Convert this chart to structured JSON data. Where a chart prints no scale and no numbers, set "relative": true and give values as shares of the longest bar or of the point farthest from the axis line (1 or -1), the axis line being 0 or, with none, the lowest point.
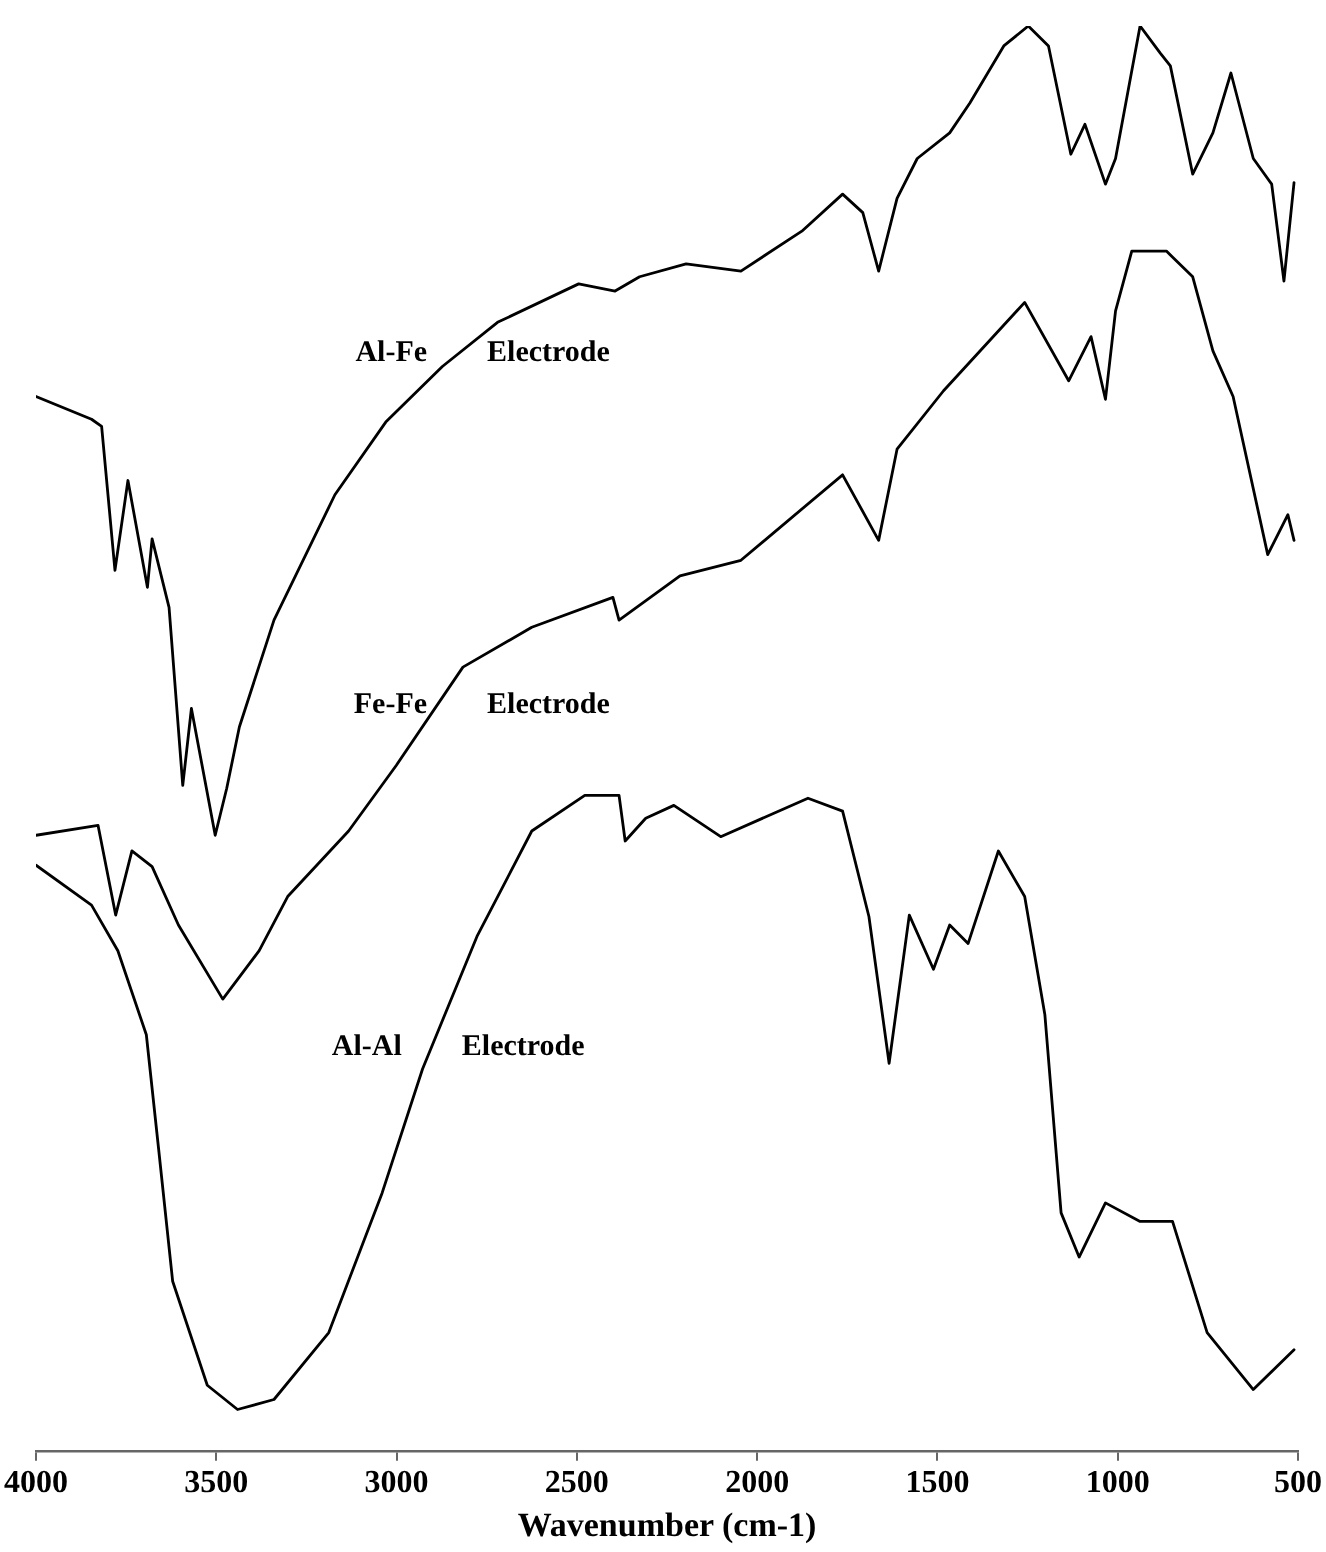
{
  "chart_data": {
    "type": "line",
    "xlabel": "Wavenumber (cm-1)",
    "xlim": [
      4000,
      500
    ],
    "xticks": [
      4000,
      3500,
      3000,
      2500,
      2000,
      1500,
      1000,
      500
    ],
    "relative": true,
    "grid": false,
    "legend": false,
    "marker": "none",
    "line_style": "solid",
    "series": [
      {
        "name": "Al-Fe Electrode",
        "color": "#000000",
        "x": [
          4000,
          3846,
          3818,
          3781,
          3745,
          3691,
          3678,
          3631,
          3593,
          3569,
          3503,
          3471,
          3436,
          3340,
          3171,
          3030,
          2873,
          2720,
          2495,
          2394,
          2326,
          2197,
          2045,
          1876,
          1763,
          1707,
          1663,
          1612,
          1556,
          1466,
          1410,
          1316,
          1248,
          1192,
          1130,
          1091,
          1034,
          1006,
          938,
          882,
          854,
          792,
          736,
          686,
          624,
          573,
          539,
          511
        ],
        "values": [
          0.74,
          0.724,
          0.719,
          0.618,
          0.681,
          0.606,
          0.64,
          0.592,
          0.467,
          0.521,
          0.432,
          0.465,
          0.508,
          0.583,
          0.671,
          0.722,
          0.761,
          0.792,
          0.819,
          0.814,
          0.824,
          0.833,
          0.828,
          0.856,
          0.882,
          0.869,
          0.828,
          0.879,
          0.907,
          0.925,
          0.946,
          0.986,
          1.0,
          0.986,
          0.91,
          0.931,
          0.889,
          0.907,
          1.0,
          0.981,
          0.972,
          0.896,
          0.925,
          0.967,
          0.907,
          0.889,
          0.821,
          0.89
        ]
      },
      {
        "name": "Fe-Fe Electrode",
        "color": "#000000",
        "x": [
          4000,
          3828,
          3779,
          3734,
          3678,
          3605,
          3482,
          3381,
          3302,
          3133,
          3001,
          2816,
          2625,
          2400,
          2383,
          2214,
          2045,
          1763,
          1663,
          1612,
          1483,
          1258,
          1136,
          1074,
          1034,
          1006,
          961,
          865,
          792,
          736,
          680,
          584,
          528,
          511
        ],
        "values": [
          0.432,
          0.439,
          0.376,
          0.421,
          0.41,
          0.369,
          0.317,
          0.351,
          0.389,
          0.435,
          0.481,
          0.55,
          0.578,
          0.599,
          0.583,
          0.614,
          0.625,
          0.685,
          0.639,
          0.703,
          0.744,
          0.806,
          0.751,
          0.782,
          0.738,
          0.8,
          0.842,
          0.842,
          0.824,
          0.772,
          0.74,
          0.629,
          0.657,
          0.639
        ]
      },
      {
        "name": "Al-Al Electrode",
        "color": "#000000",
        "x": [
          4000,
          3846,
          3773,
          3694,
          3660,
          3621,
          3525,
          3441,
          3340,
          3188,
          3040,
          2928,
          2777,
          2625,
          2478,
          2383,
          2366,
          2309,
          2231,
          2101,
          1859,
          1763,
          1690,
          1634,
          1578,
          1511,
          1466,
          1415,
          1331,
          1258,
          1202,
          1157,
          1107,
          1034,
          938,
          848,
          752,
          624,
          511
        ],
        "values": [
          0.411,
          0.383,
          0.351,
          0.292,
          0.212,
          0.119,
          0.046,
          0.029,
          0.036,
          0.083,
          0.181,
          0.268,
          0.361,
          0.435,
          0.46,
          0.46,
          0.428,
          0.444,
          0.453,
          0.431,
          0.458,
          0.449,
          0.375,
          0.272,
          0.376,
          0.338,
          0.369,
          0.356,
          0.421,
          0.389,
          0.306,
          0.167,
          0.136,
          0.174,
          0.161,
          0.161,
          0.083,
          0.043,
          0.071
        ]
      }
    ]
  }
}
